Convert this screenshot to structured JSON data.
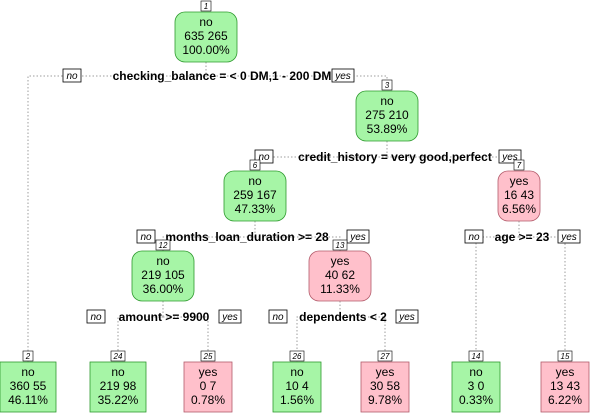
{
  "nodes": [
    {
      "id": "1",
      "label": "no",
      "counts": "635  265",
      "pct": "100.00%",
      "kind": "internal",
      "class": "no"
    },
    {
      "id": "3",
      "label": "no",
      "counts": "275  210",
      "pct": "53.89%",
      "kind": "internal",
      "class": "no"
    },
    {
      "id": "6",
      "label": "no",
      "counts": "259  167",
      "pct": "47.33%",
      "kind": "internal",
      "class": "no"
    },
    {
      "id": "7",
      "label": "yes",
      "counts": "16  43",
      "pct": "6.56%",
      "kind": "internal",
      "class": "yes"
    },
    {
      "id": "12",
      "label": "no",
      "counts": "219  105",
      "pct": "36.00%",
      "kind": "internal",
      "class": "no"
    },
    {
      "id": "13",
      "label": "yes",
      "counts": "40  62",
      "pct": "11.33%",
      "kind": "internal",
      "class": "yes"
    },
    {
      "id": "2",
      "label": "no",
      "counts": "360  55",
      "pct": "46.11%",
      "kind": "leaf",
      "class": "no"
    },
    {
      "id": "24",
      "label": "no",
      "counts": "219  98",
      "pct": "35.22%",
      "kind": "leaf",
      "class": "no"
    },
    {
      "id": "25",
      "label": "yes",
      "counts": "0  7",
      "pct": "0.78%",
      "kind": "leaf",
      "class": "yes"
    },
    {
      "id": "26",
      "label": "no",
      "counts": "10  4",
      "pct": "1.56%",
      "kind": "leaf",
      "class": "no"
    },
    {
      "id": "27",
      "label": "yes",
      "counts": "30  58",
      "pct": "9.78%",
      "kind": "leaf",
      "class": "yes"
    },
    {
      "id": "14",
      "label": "no",
      "counts": "3  0",
      "pct": "0.33%",
      "kind": "leaf",
      "class": "no"
    },
    {
      "id": "15",
      "label": "yes",
      "counts": "13  43",
      "pct": "6.22%",
      "kind": "leaf",
      "class": "yes"
    }
  ],
  "splits": [
    {
      "node": "1",
      "rule": "checking_balance = < 0 DM,1 - 200 DM",
      "left_tag": "no",
      "right_tag": "yes"
    },
    {
      "node": "3",
      "rule": "credit_history = very good,perfect",
      "left_tag": "no",
      "right_tag": "yes"
    },
    {
      "node": "6",
      "rule": "months_loan_duration >= 28",
      "left_tag": "no",
      "right_tag": "yes"
    },
    {
      "node": "7",
      "rule": "age >= 23",
      "left_tag": "no",
      "right_tag": "yes"
    },
    {
      "node": "12",
      "rule": "amount >= 9900",
      "left_tag": "no",
      "right_tag": "yes"
    },
    {
      "node": "13",
      "rule": "dependents < 2",
      "left_tag": "no",
      "right_tag": "yes"
    }
  ],
  "edges": [
    {
      "from": "1",
      "to": "2"
    },
    {
      "from": "1",
      "to": "3"
    },
    {
      "from": "3",
      "to": "6"
    },
    {
      "from": "3",
      "to": "7"
    },
    {
      "from": "6",
      "to": "12"
    },
    {
      "from": "6",
      "to": "13"
    },
    {
      "from": "7",
      "to": "14"
    },
    {
      "from": "7",
      "to": "15"
    },
    {
      "from": "12",
      "to": "24"
    },
    {
      "from": "12",
      "to": "25"
    },
    {
      "from": "13",
      "to": "26"
    },
    {
      "from": "13",
      "to": "27"
    }
  ],
  "colors": {
    "no_fill": "#a6f5a6",
    "no_stroke": "#2e9a2e",
    "yes_fill": "#ffc0cb",
    "yes_stroke": "#b35b6b",
    "edge": "#9e9e9e",
    "text": "#000000"
  }
}
